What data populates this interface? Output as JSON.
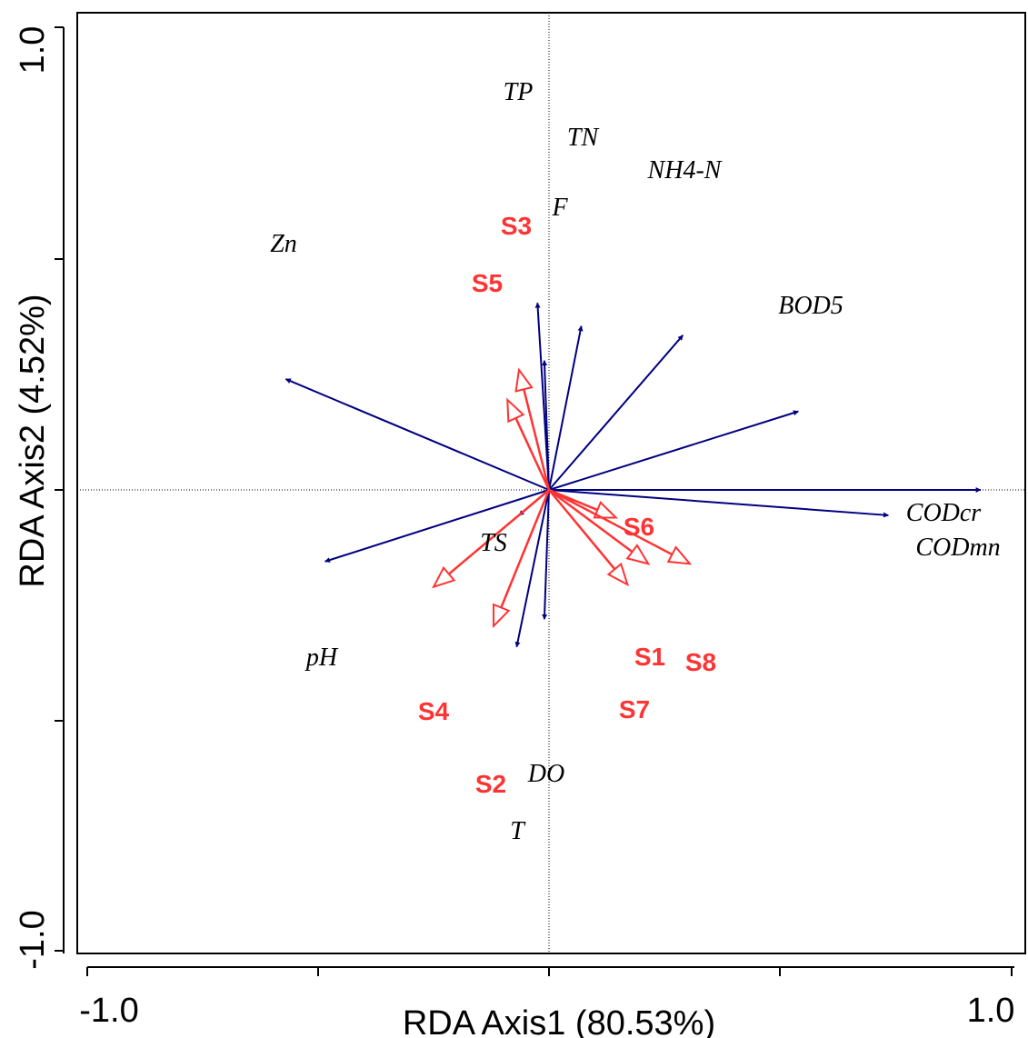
{
  "chart_data": {
    "type": "scatter",
    "subtype": "rda-biplot",
    "xlabel": "RDA  Axis1 (80.53%)",
    "ylabel": "RDA  Axis2 (4.52%)",
    "xlim": [
      -1.0,
      1.0
    ],
    "ylim": [
      -1.0,
      1.0
    ],
    "x_tick_labels": [
      "-1.0",
      "1.0"
    ],
    "y_tick_labels": [
      "1.0",
      "-1.0"
    ],
    "zero_lines": true,
    "colors": {
      "environment": "#00007F",
      "sample": "#FF3333",
      "axes": "#000000"
    },
    "environment_vectors": [
      {
        "name": "TP",
        "x": -0.05,
        "y": 0.81
      },
      {
        "name": "TN",
        "x": 0.14,
        "y": 0.71
      },
      {
        "name": "NH4-N",
        "x": 0.58,
        "y": 0.67
      },
      {
        "name": "F",
        "x": -0.02,
        "y": 0.56
      },
      {
        "name": "Zn",
        "x": -1.14,
        "y": 0.48
      },
      {
        "name": "BOD5",
        "x": 1.08,
        "y": 0.34
      },
      {
        "name": "CODcr",
        "x": 1.87,
        "y": 0.0
      },
      {
        "name": "CODmn",
        "x": 1.47,
        "y": -0.11
      },
      {
        "name": "TS",
        "x": -0.13,
        "y": -0.11
      },
      {
        "name": "pH",
        "x": -0.97,
        "y": -0.31
      },
      {
        "name": "DO",
        "x": -0.02,
        "y": -0.56
      },
      {
        "name": "T",
        "x": -0.14,
        "y": -0.68
      }
    ],
    "sample_vectors": [
      {
        "name": "S3",
        "x": -0.13,
        "y": 0.52
      },
      {
        "name": "S5",
        "x": -0.18,
        "y": 0.39
      },
      {
        "name": "S6",
        "x": 0.29,
        "y": -0.12
      },
      {
        "name": "S1",
        "x": 0.43,
        "y": -0.32
      },
      {
        "name": "S8",
        "x": 0.61,
        "y": -0.32
      },
      {
        "name": "S7",
        "x": 0.34,
        "y": -0.41
      },
      {
        "name": "S4",
        "x": -0.5,
        "y": -0.42
      },
      {
        "name": "S2",
        "x": -0.24,
        "y": -0.59
      }
    ]
  }
}
